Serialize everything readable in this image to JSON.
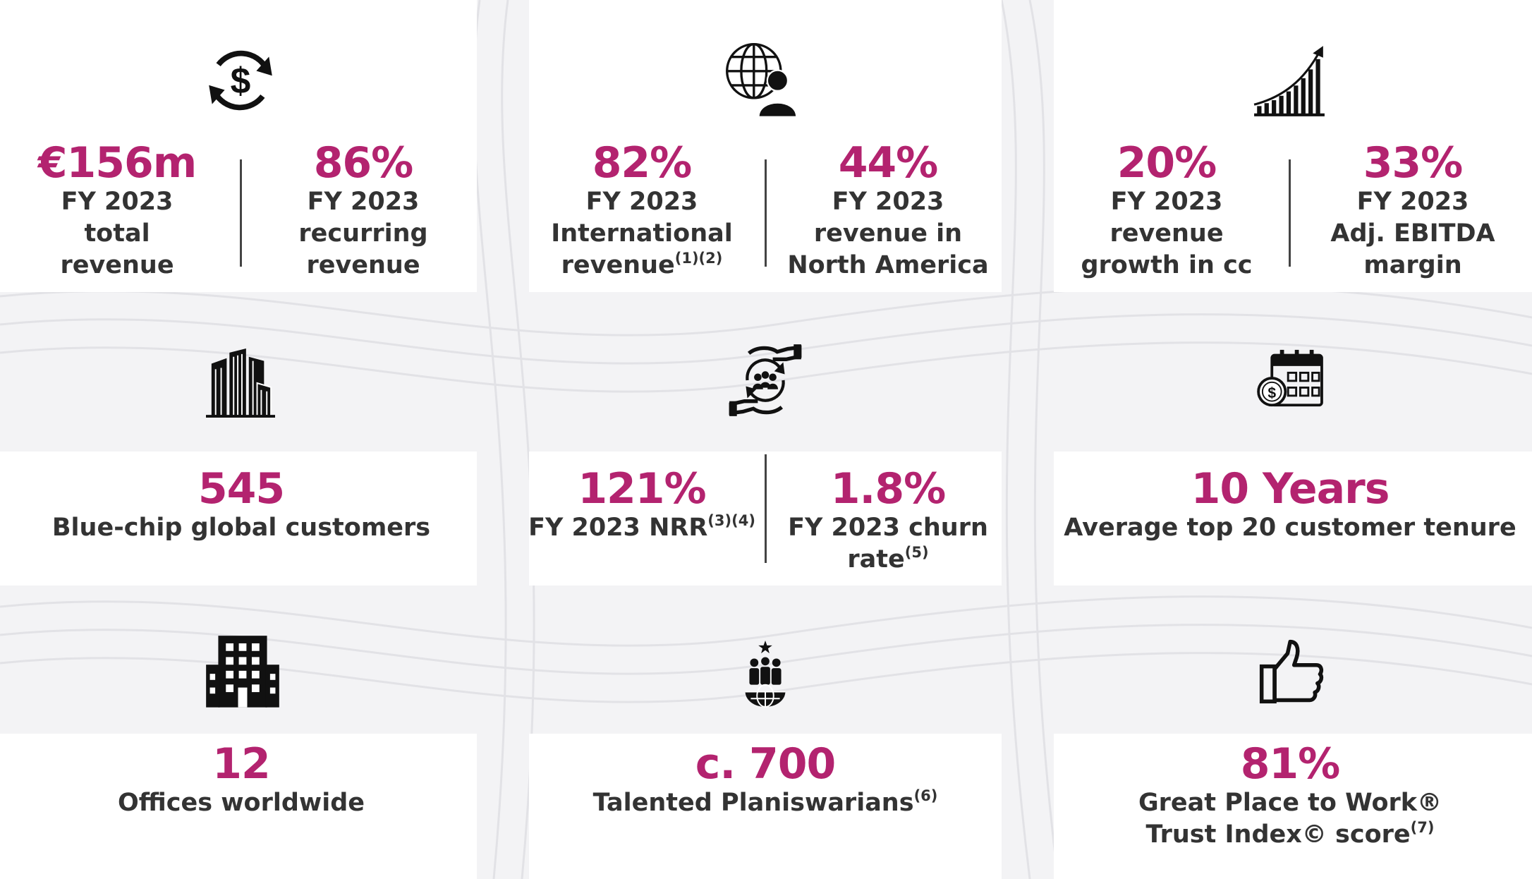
{
  "metrics": {
    "revenue": {
      "total": {
        "value": "€156m",
        "label": [
          "FY 2023",
          "total",
          "revenue"
        ]
      },
      "recurring": {
        "value": "86%",
        "label": [
          "FY 2023",
          "recurring",
          "revenue"
        ]
      }
    },
    "international": {
      "intl": {
        "value": "82%",
        "label": [
          "FY 2023",
          "International",
          "revenue"
        ],
        "footnote": "(1)(2)"
      },
      "north_america": {
        "value": "44%",
        "label": [
          "FY 2023",
          "revenue in",
          "North America"
        ]
      }
    },
    "growth": {
      "growth": {
        "value": "20%",
        "label": [
          "FY 2023",
          "revenue",
          "growth in cc"
        ]
      },
      "ebitda": {
        "value": "33%",
        "label": [
          "FY 2023",
          "Adj. EBITDA",
          "margin"
        ]
      }
    },
    "customers": {
      "value": "545",
      "label": "Blue-chip global customers"
    },
    "retention": {
      "nrr": {
        "value": "121%",
        "label": "FY 2023 NRR",
        "footnote": "(3)(4)"
      },
      "churn": {
        "value": "1.8%",
        "label": [
          "FY 2023 churn",
          "rate"
        ],
        "footnote": "(5)"
      }
    },
    "tenure": {
      "value": "10 Years",
      "label": "Average top 20 customer tenure"
    },
    "offices": {
      "value": "12",
      "label": "Offices worldwide"
    },
    "employees": {
      "value": "c. 700",
      "label": "Talented Planiswarians",
      "footnote": "(6)"
    },
    "gptw": {
      "value": "81%",
      "label": [
        "Great Place to Work®",
        "Trust Index© score"
      ],
      "footnote": "(7)"
    }
  },
  "icons": [
    "dollar-cycle-icon",
    "globe-person-icon",
    "growth-chart-icon",
    "skyscraper-icon",
    "customer-retention-icon",
    "calendar-payment-icon",
    "office-building-icon",
    "global-team-icon",
    "thumbs-up-icon"
  ],
  "colors": {
    "accent": "#b3236f",
    "text": "#333333",
    "background": "#f3f3f5",
    "panel": "#ffffff"
  }
}
